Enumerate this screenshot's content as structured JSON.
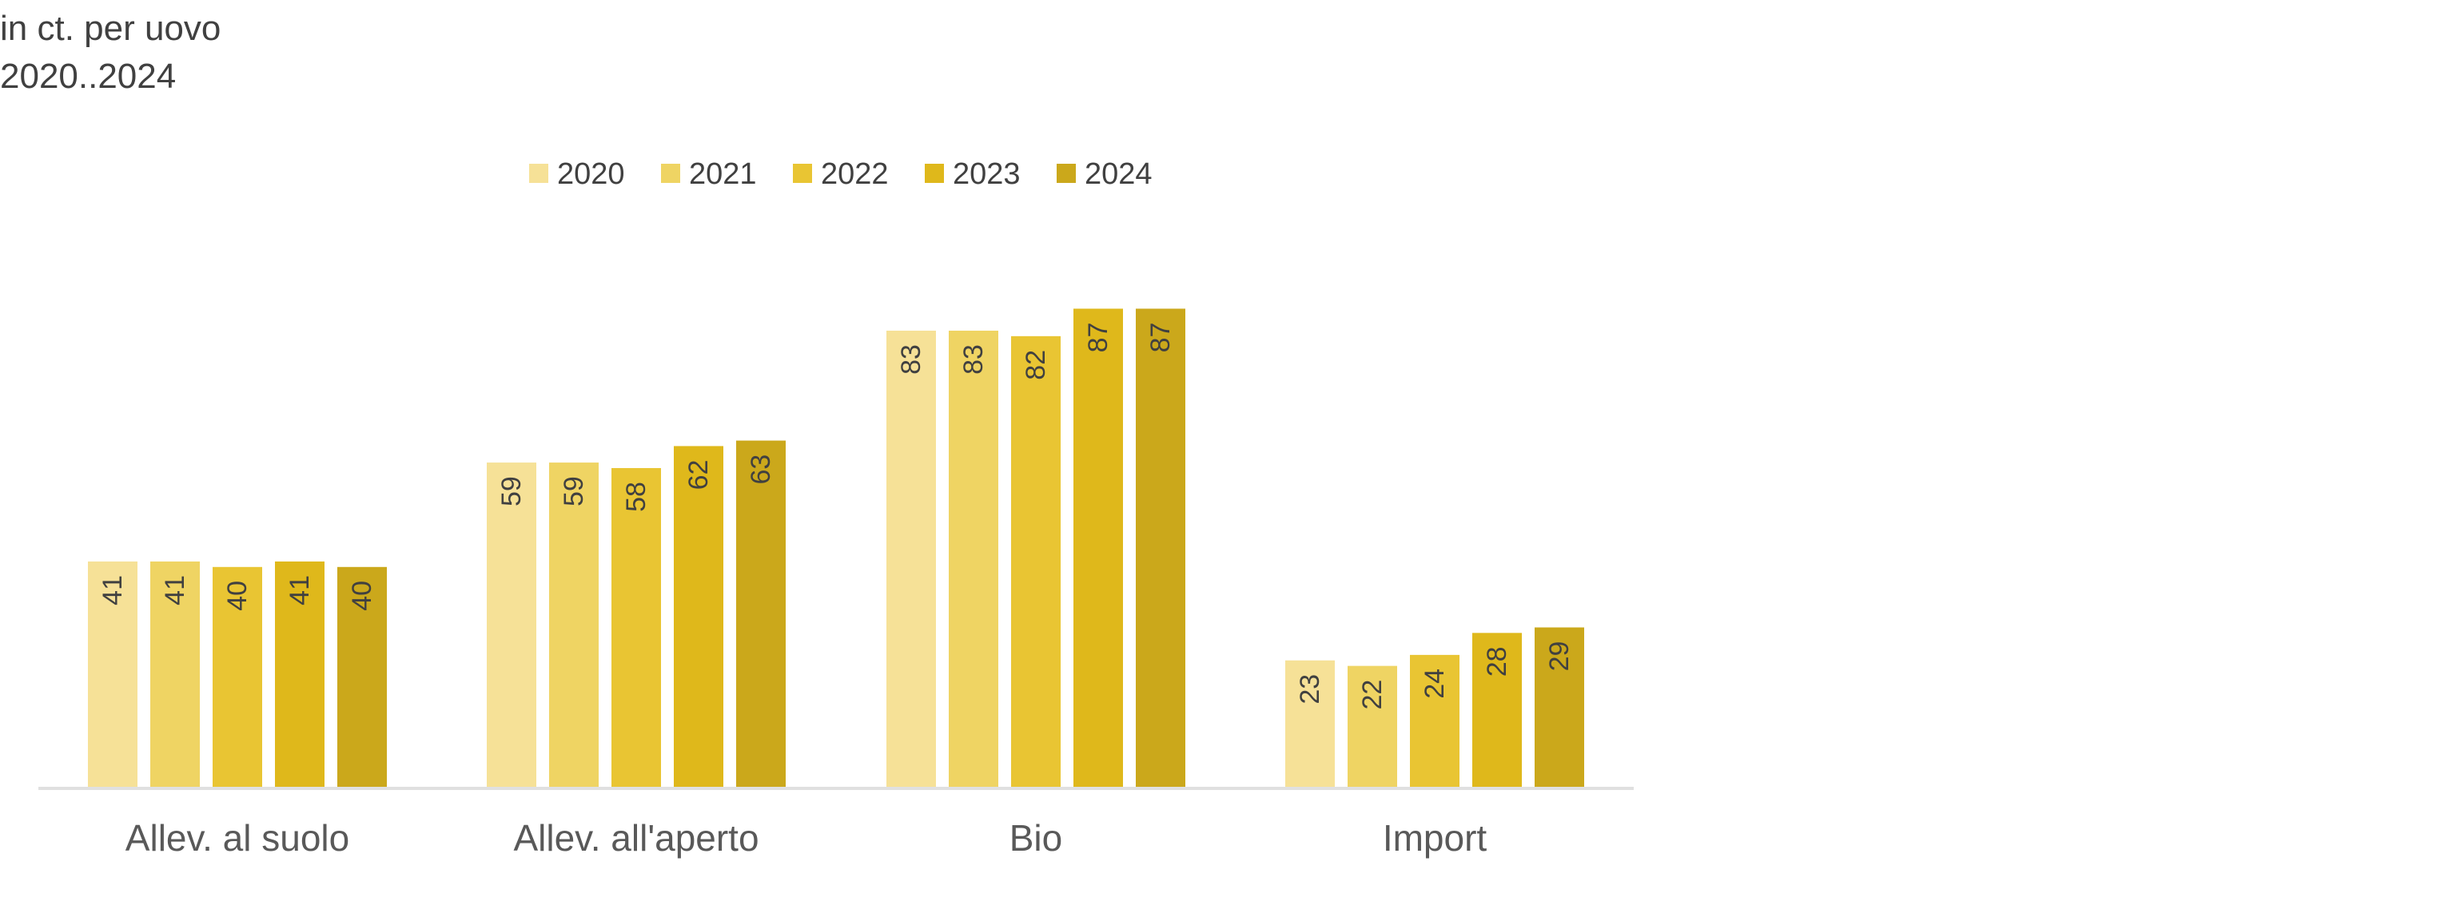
{
  "header": {
    "unit_line": "in ct. per uovo",
    "period_line": "2020..2024"
  },
  "colors": {
    "2020": "#f6e197",
    "2021": "#efd463",
    "2022": "#e9c533",
    "2023": "#dfb81b",
    "2024": "#cba81b",
    "axis": "#e0e0e0",
    "text": "#404040",
    "category_text": "#595959"
  },
  "chart_data": {
    "type": "bar",
    "categories": [
      "Allev. al suolo",
      "Allev. all'aperto",
      "Bio",
      "Import"
    ],
    "series": [
      {
        "name": "2020",
        "values": [
          41,
          59,
          83,
          23
        ]
      },
      {
        "name": "2021",
        "values": [
          41,
          59,
          83,
          22
        ]
      },
      {
        "name": "2022",
        "values": [
          40,
          58,
          82,
          24
        ]
      },
      {
        "name": "2023",
        "values": [
          41,
          62,
          87,
          28
        ]
      },
      {
        "name": "2024",
        "values": [
          40,
          63,
          87,
          29
        ]
      }
    ],
    "legend_position": "top",
    "data_labels": "inside-end-rotated",
    "grid": false,
    "ylim": [
      0,
      100
    ],
    "title": "",
    "xlabel": "",
    "ylabel": ""
  }
}
